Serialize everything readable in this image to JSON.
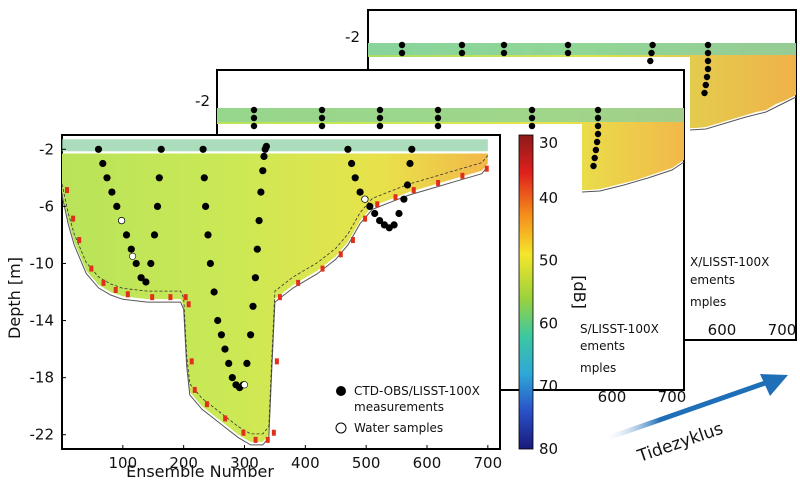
{
  "chart_data": [
    {
      "type": "heatmap",
      "layer": "front",
      "xlabel": "Ensemble Number",
      "ylabel": "Depth [m]",
      "xlim": [
        0,
        720
      ],
      "ylim": [
        -23,
        -1
      ],
      "xticks": [
        "100",
        "200",
        "300",
        "400",
        "500",
        "600",
        "700"
      ],
      "yticks": [
        "-2",
        "-6",
        "-10",
        "-14",
        "-18",
        "-22"
      ],
      "colorbar": {
        "label": "[dB]",
        "ticks": [
          "30",
          "40",
          "50",
          "60",
          "70",
          "80"
        ],
        "range": [
          30,
          80
        ]
      },
      "legend": {
        "ctd_label_line1": "CTD-OBS/LISST-100X",
        "ctd_label_line2": "measurements",
        "water_label": "Water samples"
      },
      "profiles": [
        {
          "x": [
            60,
            67,
            74,
            82,
            90,
            98,
            106,
            114,
            122,
            130,
            138,
            146,
            152,
            157,
            160,
            163
          ],
          "y": [
            -2,
            -3,
            -4,
            -5,
            -6,
            -7,
            -8,
            -9,
            -10,
            -11,
            -11.3,
            -10,
            -8,
            -6,
            -4,
            -2
          ]
        },
        {
          "x": [
            232,
            234,
            236,
            240,
            244,
            250,
            256,
            262,
            268,
            274,
            280,
            286,
            292,
            298,
            304,
            310,
            314,
            318,
            321,
            324,
            327,
            330,
            332,
            334,
            336
          ],
          "y": [
            -2,
            -4,
            -6,
            -8,
            -10,
            -12,
            -14,
            -15,
            -16,
            -17,
            -18,
            -18.5,
            -18.7,
            -18.5,
            -17,
            -15,
            -13,
            -11,
            -9,
            -7,
            -5,
            -3.5,
            -2.5,
            -2,
            -1.8
          ]
        },
        {
          "x": [
            470,
            476,
            482,
            490,
            498,
            506,
            514,
            522,
            530,
            538,
            546,
            554,
            562,
            568,
            572,
            575
          ],
          "y": [
            -2,
            -3,
            -4,
            -5,
            -5.5,
            -6,
            -6.5,
            -7,
            -7.3,
            -7.5,
            -7.3,
            -6.5,
            -5.5,
            -4.5,
            -3,
            -2
          ]
        }
      ],
      "water_samples": [
        {
          "x": 98,
          "y": -7
        },
        {
          "x": 116,
          "y": -9.5
        },
        {
          "x": 300,
          "y": -18.5
        },
        {
          "x": 498,
          "y": -5.5
        }
      ]
    },
    {
      "type": "heatmap",
      "layer": "middle",
      "xticks": [
        "600",
        "700"
      ],
      "yticks": [
        "-2"
      ],
      "legend": {
        "ctd_label_line1": "S/LISST-100X",
        "ctd_label_line2": "ements",
        "water_label": "mples"
      }
    },
    {
      "type": "heatmap",
      "layer": "back",
      "xticks": [
        "600",
        "700"
      ],
      "yticks": [
        "-2"
      ],
      "legend": {
        "ctd_label_line1": "X/LISST-100X",
        "ctd_label_line2": "ements",
        "water_label": "mples"
      }
    }
  ],
  "annotation": {
    "arrow_label": "Tidezyklus",
    "arrow_color": "#1f6fb8"
  },
  "colors": {
    "dot": "#000000",
    "sample": "#ffffff",
    "seabed": "#555555"
  }
}
